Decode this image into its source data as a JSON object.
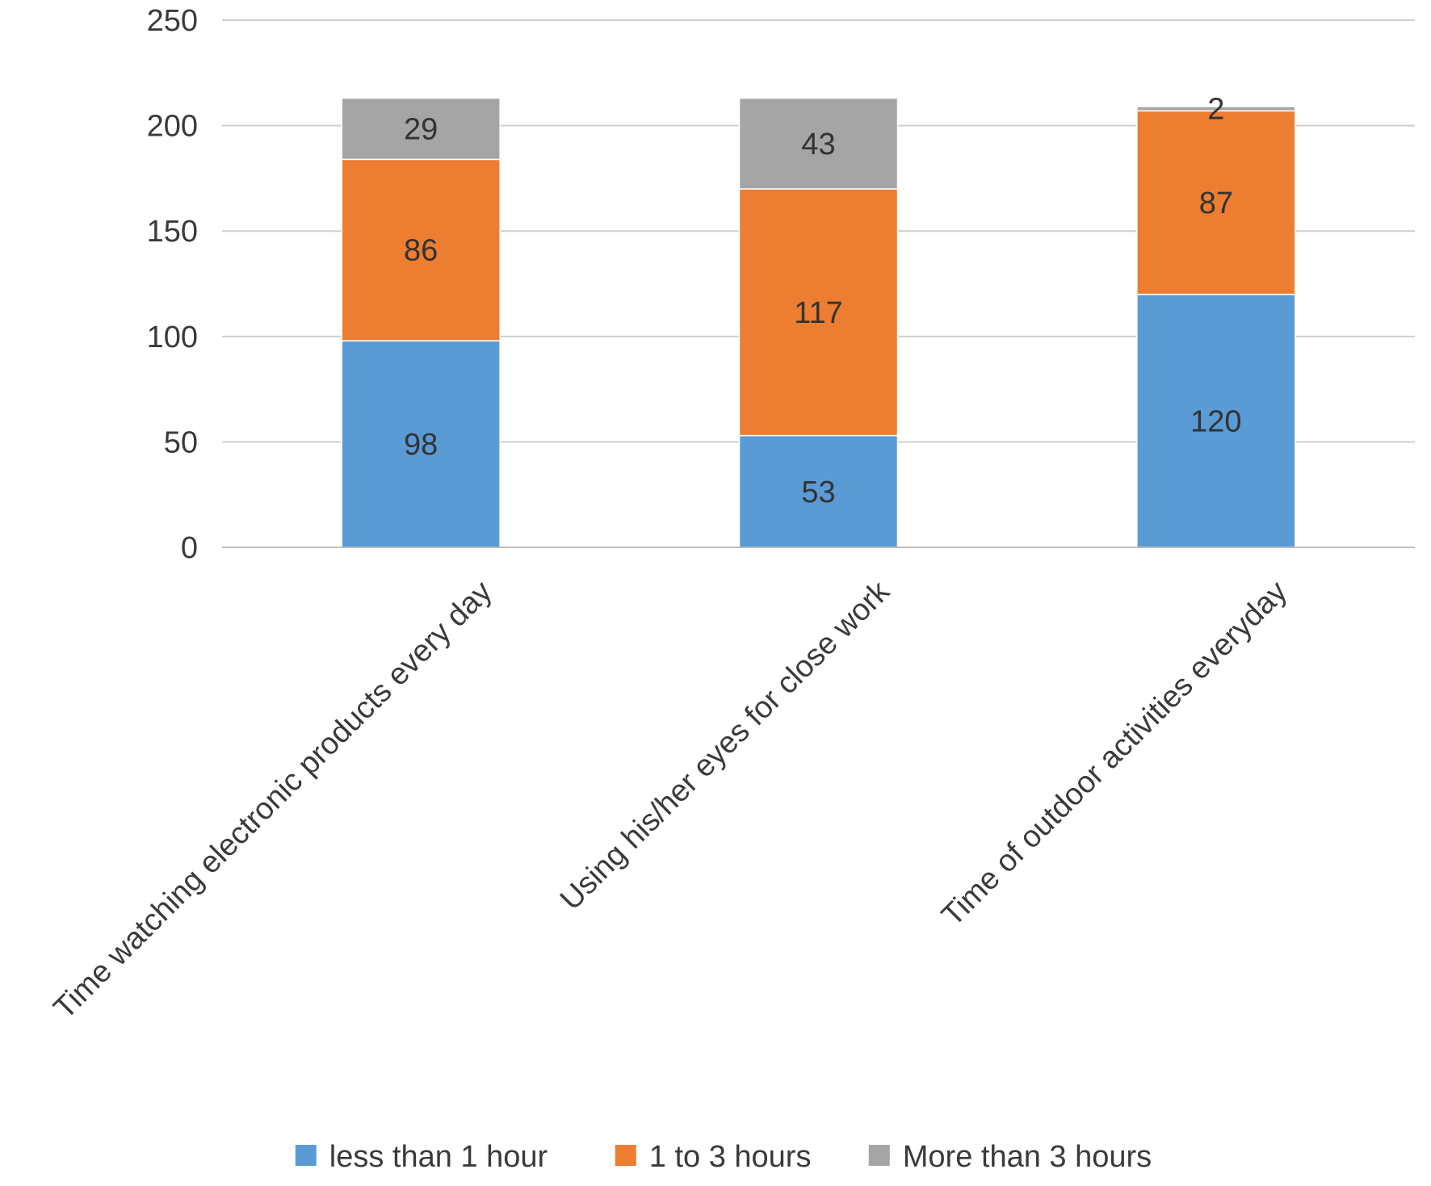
{
  "chart_data": {
    "type": "bar",
    "stacked": true,
    "title": "",
    "xlabel": "",
    "ylabel": "",
    "ylim": [
      0,
      250
    ],
    "yticks": [
      "0",
      "50",
      "100",
      "150",
      "200",
      "250"
    ],
    "grid": true,
    "legend_position": "bottom",
    "categories": [
      "Time  watching electronic products every day",
      "Using his/her eyes for close work",
      "Time of outdoor activities everyday"
    ],
    "series": [
      {
        "name": "less than 1 hour",
        "color": "#5b9bd5",
        "values": [
          98,
          53,
          120
        ]
      },
      {
        "name": "1 to 3 hours",
        "color": "#ed7d31",
        "values": [
          86,
          117,
          87
        ]
      },
      {
        "name": "More than 3 hours",
        "color": "#a5a5a5",
        "values": [
          29,
          43,
          2
        ]
      }
    ]
  }
}
